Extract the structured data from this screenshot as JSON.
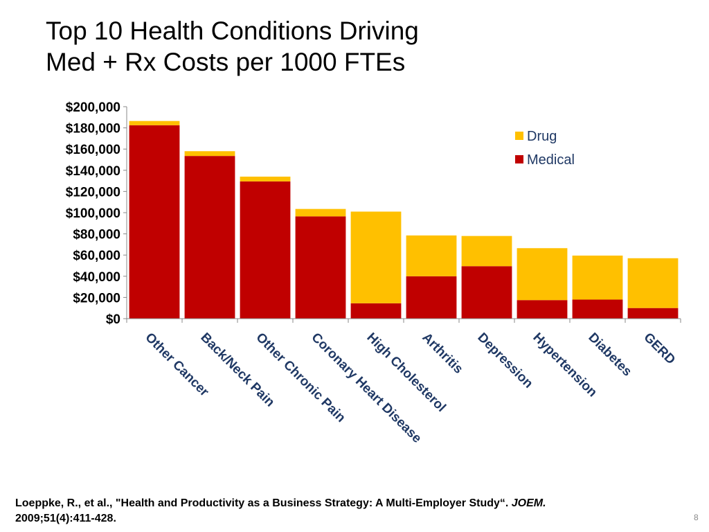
{
  "slide": {
    "title_line1": "Top 10 Health Conditions Driving",
    "title_line2": "Med + Rx Costs per 1000 FTEs",
    "citation_main": "Loeppke, R., et al., \"Health and Productivity as a Business Strategy: A Multi-Employer Study“. ",
    "citation_journal": "JOEM.",
    "citation_detail": "2009;51(4):411-428.",
    "page_number": "8"
  },
  "colors": {
    "medical": "#c00000",
    "drug": "#ffc000",
    "axis": "#888888",
    "label": "#1f3864"
  },
  "chart_data": {
    "type": "bar",
    "stacked": true,
    "title": "",
    "xlabel": "",
    "ylabel": "",
    "ylim": [
      0,
      200000
    ],
    "yticks": [
      0,
      20000,
      40000,
      60000,
      80000,
      100000,
      120000,
      140000,
      160000,
      180000,
      200000
    ],
    "ytick_labels": [
      "$0",
      "$20,000",
      "$40,000",
      "$60,000",
      "$80,000",
      "$100,000",
      "$120,000",
      "$140,000",
      "$160,000",
      "$180,000",
      "$200,000"
    ],
    "categories": [
      "Other Cancer",
      "Back/Neck Pain",
      "Other Chronic Pain",
      "Coronary Heart Disease",
      "High Cholesterol",
      "Arthritis",
      "Depression",
      "Hypertension",
      "Diabetes",
      "GERD"
    ],
    "series": [
      {
        "name": "Medical",
        "color": "#c00000",
        "values": [
          182500,
          153500,
          129500,
          96500,
          14500,
          40000,
          49500,
          17500,
          18000,
          10000
        ]
      },
      {
        "name": "Drug",
        "color": "#ffc000",
        "values": [
          4000,
          4500,
          4500,
          7000,
          86500,
          38500,
          28500,
          49000,
          41500,
          47000
        ]
      }
    ],
    "legend": {
      "position": "top-right",
      "order": [
        "Drug",
        "Medical"
      ]
    },
    "grid": false
  }
}
